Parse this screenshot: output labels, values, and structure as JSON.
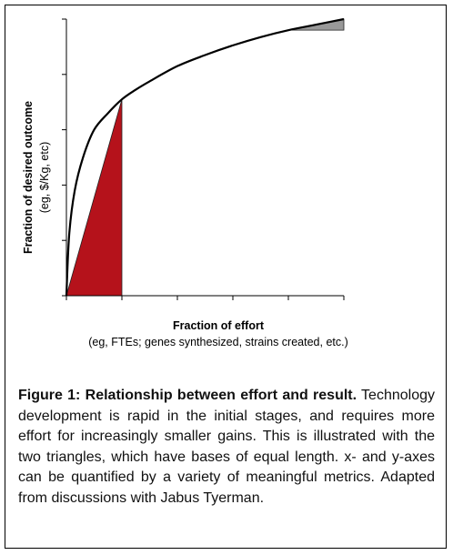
{
  "chart_data": {
    "type": "line",
    "title": "",
    "ylabel": "Fraction of desired outcome",
    "ylabel_sub": "(eg, $/Kg, etc)",
    "xlabel": "Fraction of effort",
    "xlabel_sub": "(eg, FTEs; genes synthesized, strains created, etc.)",
    "xlim": [
      0,
      1
    ],
    "ylim": [
      0,
      1
    ],
    "grid": false,
    "x_ticks": [
      0,
      0.2,
      0.4,
      0.6,
      0.8,
      1.0
    ],
    "y_ticks": [
      0,
      0.2,
      0.4,
      0.6,
      0.8,
      1.0
    ],
    "series": [
      {
        "x": [
          0,
          0.01,
          0.03,
          0.06,
          0.1,
          0.15,
          0.2,
          0.25,
          0.3,
          0.4,
          0.5,
          0.6,
          0.7,
          0.8,
          0.9,
          1.0
        ],
        "y": [
          0,
          0.22,
          0.38,
          0.5,
          0.6,
          0.66,
          0.71,
          0.745,
          0.775,
          0.83,
          0.87,
          0.905,
          0.935,
          0.96,
          0.98,
          1.0
        ]
      }
    ],
    "triangles": [
      {
        "x_start": 0,
        "x_end": 0.2,
        "y_low": 0,
        "y_high": 0.71,
        "color": "#b5121b"
      },
      {
        "x_start": 0.8,
        "x_end": 1.0,
        "y_low": 0.96,
        "y_high": 1.0,
        "color": "#999999"
      }
    ],
    "line_color": "#000000"
  },
  "caption": {
    "title": "Figure 1: Relationship between effort and result.",
    "body": " Technology development is rapid in the initial stages, and requires more effort for increasingly smaller gains. This is illustrated with the two triangles, which have bases of equal length.  x- and y-axes can be quantified by a variety of meaningful metrics. Adapted from discussions with Jabus Tyerman."
  }
}
